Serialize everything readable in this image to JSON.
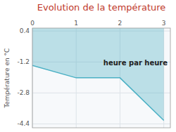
{
  "chart_data": {
    "type": "area",
    "title": "Evolution de la température",
    "ylabel": "Température en °C",
    "x": [
      0,
      1,
      2,
      3
    ],
    "values": [
      -1.38,
      -2.02,
      -2.02,
      -4.22
    ],
    "color": "#4ab0c4",
    "xlim": [
      0,
      3.15
    ],
    "xticks": [
      0,
      1,
      2,
      3
    ],
    "ylim": [
      -4.6,
      0.55
    ],
    "yticks": [
      0.4,
      -1.2,
      -2.8,
      -4.4
    ],
    "grid": true,
    "annotations": [
      {
        "text": "heure par heure",
        "x": 1.62,
        "y": -1.1
      }
    ]
  }
}
